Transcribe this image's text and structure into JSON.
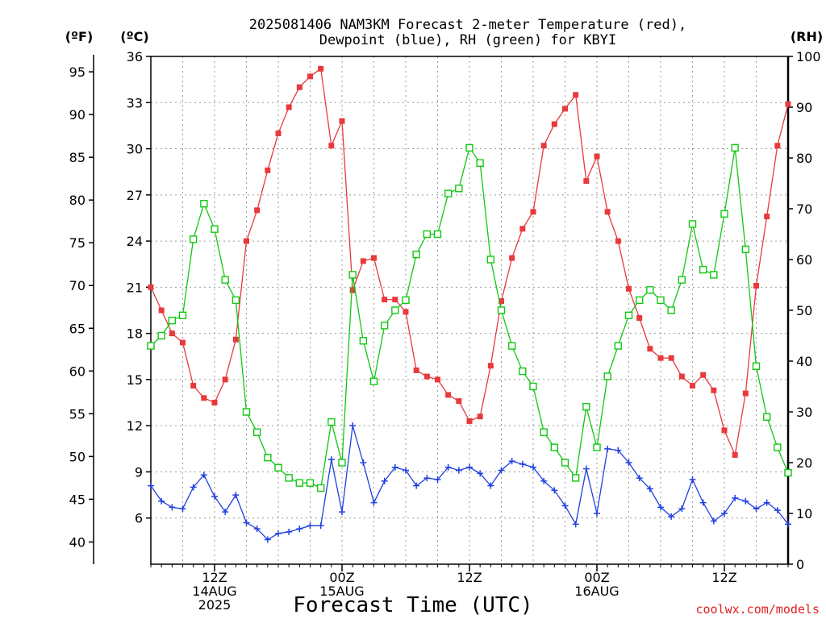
{
  "chart_data": {
    "type": "line",
    "title": [
      "2025081406 NAM3KM Forecast 2-meter Temperature (red),",
      "Dewpoint (blue), RH (green) for KBYI"
    ],
    "xlabel": "Forecast Time (UTC)",
    "credit": "coolwx.com/models",
    "x_hours": [
      0,
      1,
      2,
      3,
      4,
      5,
      6,
      7,
      8,
      9,
      10,
      11,
      12,
      13,
      14,
      15,
      16,
      17,
      18,
      19,
      20,
      21,
      22,
      23,
      24,
      25,
      26,
      27,
      28,
      29,
      30,
      31,
      32,
      33,
      34,
      35,
      36,
      37,
      38,
      39,
      40,
      41,
      42,
      43,
      44,
      45,
      46,
      47,
      48,
      49,
      50,
      51,
      52,
      53,
      54,
      55,
      56,
      57,
      58,
      59,
      60
    ],
    "x_ticks": [
      {
        "hour": 6,
        "lines": [
          "12Z",
          "14AUG",
          "2025"
        ]
      },
      {
        "hour": 18,
        "lines": [
          "00Z",
          "15AUG"
        ]
      },
      {
        "hour": 30,
        "lines": [
          "12Z"
        ]
      },
      {
        "hour": 42,
        "lines": [
          "00Z",
          "16AUG"
        ]
      },
      {
        "hour": 54,
        "lines": [
          "12Z"
        ]
      }
    ],
    "axes": {
      "fahrenheit": {
        "unit_label": "(ºF)",
        "ticks": [
          40,
          45,
          50,
          55,
          60,
          65,
          70,
          75,
          80,
          85,
          90,
          95
        ]
      },
      "celsius": {
        "unit_label": "(ºC)",
        "range": [
          3,
          36
        ],
        "ticks": [
          6,
          9,
          12,
          15,
          18,
          21,
          24,
          27,
          30,
          33,
          36
        ]
      },
      "rh": {
        "unit_label": "(RH)",
        "range": [
          0,
          100
        ],
        "ticks": [
          0,
          10,
          20,
          30,
          40,
          50,
          60,
          70,
          80,
          90,
          100
        ]
      }
    },
    "grid": true,
    "series": [
      {
        "key": "temperature",
        "unit": "°C",
        "color": "#e8393c",
        "marker": "filled-square",
        "values": [
          21.0,
          19.5,
          18.0,
          17.4,
          14.6,
          13.8,
          13.5,
          15.0,
          17.6,
          24.0,
          26.0,
          28.6,
          31.0,
          32.7,
          34.0,
          34.7,
          35.2,
          30.2,
          31.8,
          20.8,
          22.7,
          22.9,
          20.2,
          20.2,
          19.4,
          15.6,
          15.2,
          15.0,
          14.0,
          13.6,
          12.3,
          12.6,
          15.9,
          20.1,
          22.9,
          24.8,
          25.9,
          30.2,
          31.6,
          32.6,
          33.5,
          27.9,
          29.5,
          25.9,
          24.0,
          20.9,
          19.0,
          17.0,
          16.4,
          16.4,
          15.2,
          14.6,
          15.3,
          14.3,
          11.7,
          10.1,
          14.1,
          21.1,
          25.6,
          30.2,
          32.9
        ]
      },
      {
        "key": "dewpoint",
        "unit": "°C",
        "color": "#2040e0",
        "marker": "plus",
        "values": [
          8.1,
          7.1,
          6.7,
          6.6,
          8.0,
          8.8,
          7.4,
          6.4,
          7.5,
          5.7,
          5.3,
          4.6,
          5.0,
          5.1,
          5.3,
          5.5,
          5.5,
          9.8,
          6.4,
          12.0,
          9.6,
          7.0,
          8.4,
          9.3,
          9.1,
          8.1,
          8.6,
          8.5,
          9.3,
          9.1,
          9.3,
          8.9,
          8.1,
          9.1,
          9.7,
          9.5,
          9.3,
          8.4,
          7.8,
          6.8,
          5.6,
          9.2,
          6.3,
          10.5,
          10.4,
          9.6,
          8.6,
          7.9,
          6.7,
          6.1,
          6.6,
          8.5,
          7.0,
          5.8,
          6.3,
          7.3,
          7.1,
          6.6,
          7.0,
          6.5,
          5.6
        ]
      },
      {
        "key": "rh",
        "unit": "%",
        "color": "#10c810",
        "marker": "open-square",
        "values": [
          43,
          45,
          48,
          49,
          64,
          71,
          66,
          56,
          52,
          30,
          26,
          21,
          19,
          17,
          16,
          16,
          15,
          28,
          20,
          57,
          44,
          36,
          47,
          50,
          52,
          61,
          65,
          65,
          73,
          74,
          82,
          79,
          60,
          50,
          43,
          38,
          35,
          26,
          23,
          20,
          17,
          31,
          23,
          37,
          43,
          49,
          52,
          54,
          52,
          50,
          56,
          67,
          58,
          57,
          69,
          82,
          62,
          39,
          29,
          23,
          18
        ]
      }
    ]
  }
}
